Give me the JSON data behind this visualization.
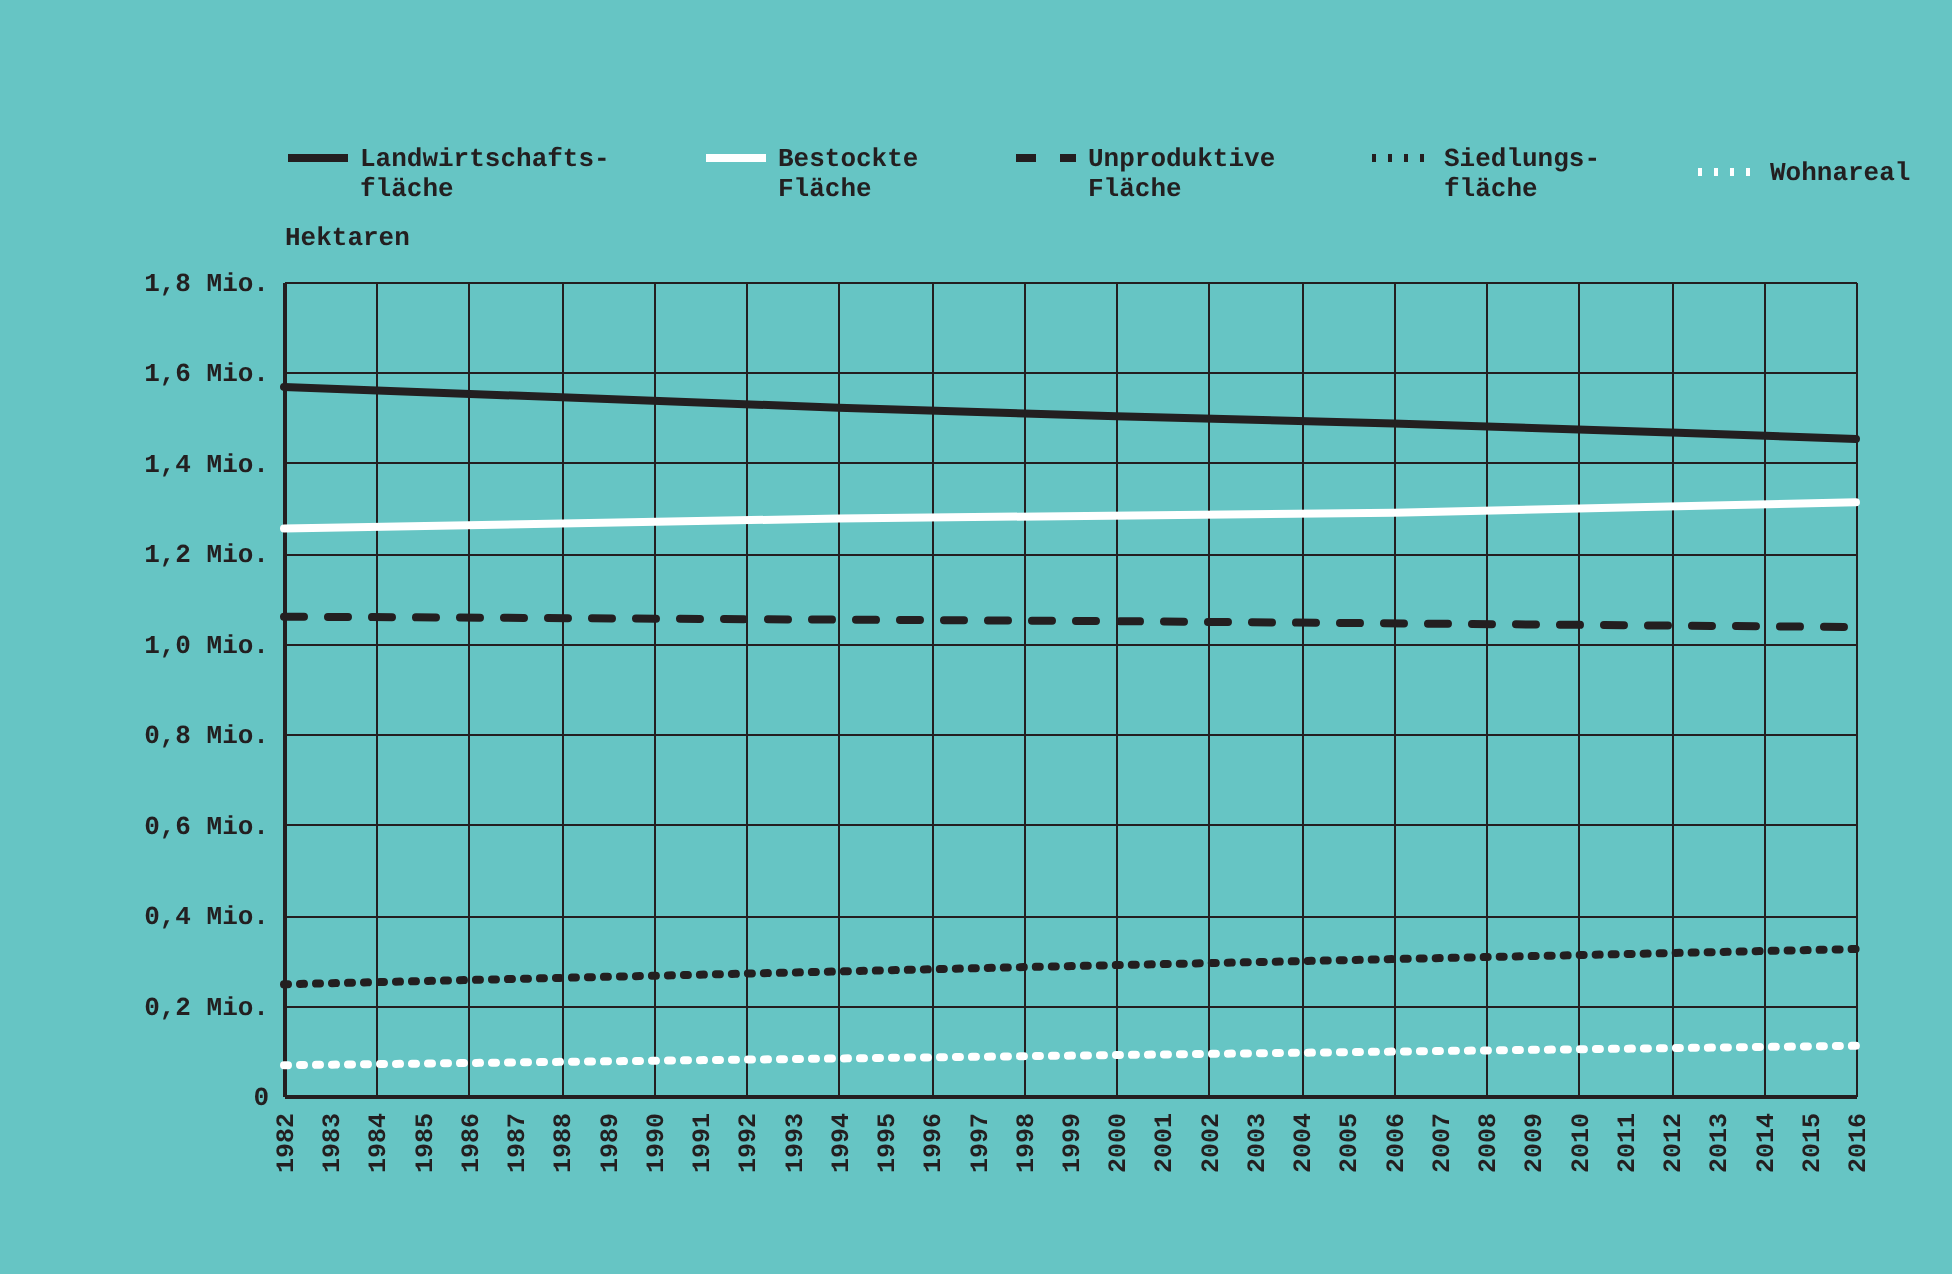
{
  "chart_data": {
    "type": "line",
    "ylabel": "Hektaren",
    "legend": "top",
    "grid": true,
    "marker": "none",
    "xlim": [
      1982,
      2016
    ],
    "xticks": [
      1982,
      1983,
      1984,
      1985,
      1986,
      1987,
      1988,
      1989,
      1990,
      1991,
      1992,
      1993,
      1994,
      1995,
      1996,
      1997,
      1998,
      1999,
      2000,
      2001,
      2002,
      2003,
      2004,
      2005,
      2006,
      2007,
      2008,
      2009,
      2010,
      2011,
      2012,
      2013,
      2014,
      2015,
      2016
    ],
    "ylim": [
      0,
      1.8
    ],
    "yticks": [
      {
        "value": 0,
        "label": "0"
      },
      {
        "value": 0.2,
        "label": "0,2 Mio."
      },
      {
        "value": 0.4,
        "label": "0,4 Mio."
      },
      {
        "value": 0.6,
        "label": "0,6 Mio."
      },
      {
        "value": 0.8,
        "label": "0,8 Mio."
      },
      {
        "value": 1.0,
        "label": "1,0 Mio."
      },
      {
        "value": 1.2,
        "label": "1,2 Mio."
      },
      {
        "value": 1.4,
        "label": "1,4 Mio."
      },
      {
        "value": 1.6,
        "label": "1,6 Mio."
      },
      {
        "value": 1.8,
        "label": "1,8 Mio."
      }
    ],
    "series": [
      {
        "name": "Landwirtschafts-\nfläche",
        "color": "#231f20",
        "line_style": "solid",
        "x": [
          1982,
          1988,
          1994,
          2000,
          2006,
          2012,
          2016
        ],
        "values": [
          1.568,
          1.545,
          1.522,
          1.503,
          1.487,
          1.467,
          1.453
        ]
      },
      {
        "name": "Bestockte\nFläche",
        "color": "#ffffff",
        "line_style": "solid",
        "x": [
          1982,
          1994,
          2006,
          2016
        ],
        "values": [
          1.255,
          1.277,
          1.29,
          1.313
        ]
      },
      {
        "name": "Unproduktive\nFläche",
        "color": "#231f20",
        "line_style": "dashed",
        "x": [
          1982,
          2000,
          2016
        ],
        "values": [
          1.06,
          1.05,
          1.037
        ]
      },
      {
        "name": "Siedlungs-\nfläche",
        "color": "#231f20",
        "line_style": "dotted",
        "x": [
          1982,
          1998,
          2016
        ],
        "values": [
          0.247,
          0.285,
          0.325
        ]
      },
      {
        "name": "Wohnareal",
        "color": "#ffffff",
        "line_style": "dotted",
        "x": [
          1982,
          1998,
          2016
        ],
        "values": [
          0.068,
          0.088,
          0.111
        ]
      }
    ]
  }
}
